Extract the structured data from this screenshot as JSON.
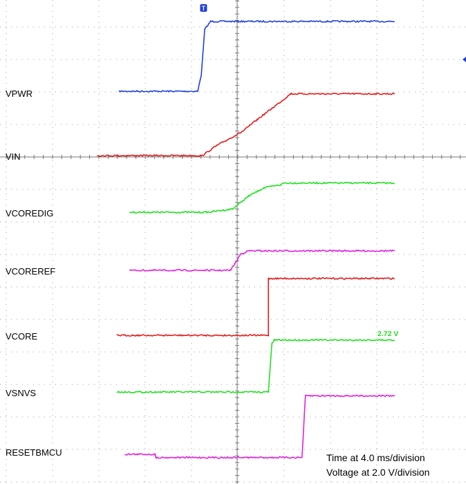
{
  "chart_data": {
    "type": "line",
    "x_unit": "ms",
    "x_per_division": 4.0,
    "volts_per_division": 2.0,
    "trigger_marker": "T",
    "series": [
      {
        "name": "VPWR",
        "color": "#1f3fe0",
        "points": [
          [
            -10.2,
            0
          ],
          [
            -3.4,
            0
          ],
          [
            -3.1,
            1.0
          ],
          [
            -2.8,
            3.8
          ],
          [
            -2.3,
            4.3
          ],
          [
            13.6,
            4.3
          ]
        ]
      },
      {
        "name": "VIN",
        "color": "#e41a1a",
        "points": [
          [
            -12.1,
            0
          ],
          [
            -3.0,
            0
          ],
          [
            -1.8,
            0.6
          ],
          [
            0.5,
            1.5
          ],
          [
            1.7,
            2.2
          ],
          [
            4.1,
            3.5
          ],
          [
            4.6,
            3.8
          ],
          [
            13.6,
            3.8
          ]
        ]
      },
      {
        "name": "VCOREDIG",
        "color": "#1ee11e",
        "points": [
          [
            -9.3,
            0
          ],
          [
            -2.6,
            0
          ],
          [
            -0.4,
            0.2
          ],
          [
            1.0,
            1.0
          ],
          [
            2.3,
            1.5
          ],
          [
            3.8,
            1.7
          ],
          [
            4.0,
            1.8
          ],
          [
            13.6,
            1.8
          ]
        ]
      },
      {
        "name": "VCOREREF",
        "color": "#e21ee2",
        "points": [
          [
            -9.3,
            0
          ],
          [
            -0.6,
            0
          ],
          [
            -0.2,
            0.4
          ],
          [
            0.3,
            1.0
          ],
          [
            1.0,
            1.2
          ],
          [
            13.6,
            1.2
          ]
        ]
      },
      {
        "name": "VCORE",
        "color": "#e41a1a",
        "points": [
          [
            -10.4,
            0
          ],
          [
            2.7,
            0
          ],
          [
            2.7,
            3.5
          ],
          [
            13.6,
            3.5
          ]
        ]
      },
      {
        "name": "VSNVS",
        "color": "#1ee11e",
        "points": [
          [
            -10.4,
            0
          ],
          [
            2.7,
            0
          ],
          [
            3.0,
            3.0
          ],
          [
            3.2,
            3.2
          ],
          [
            13.6,
            3.2
          ]
        ]
      },
      {
        "name": "RESETBMCU",
        "color": "#e21ee2",
        "points": [
          [
            -9.7,
            0
          ],
          [
            -7.1,
            0
          ],
          [
            -7.0,
            -0.2
          ],
          [
            2.3,
            -0.2
          ],
          [
            5.6,
            -0.2
          ],
          [
            5.9,
            3.6
          ],
          [
            13.6,
            3.6
          ]
        ]
      }
    ],
    "annotations": [
      {
        "text": "2.72 V",
        "color": "#1ee11e",
        "series": "VSNVS"
      }
    ],
    "notes": [
      "Time at 4.0 ms/division",
      "Voltage at 2.0 V/division"
    ],
    "grid": true
  }
}
